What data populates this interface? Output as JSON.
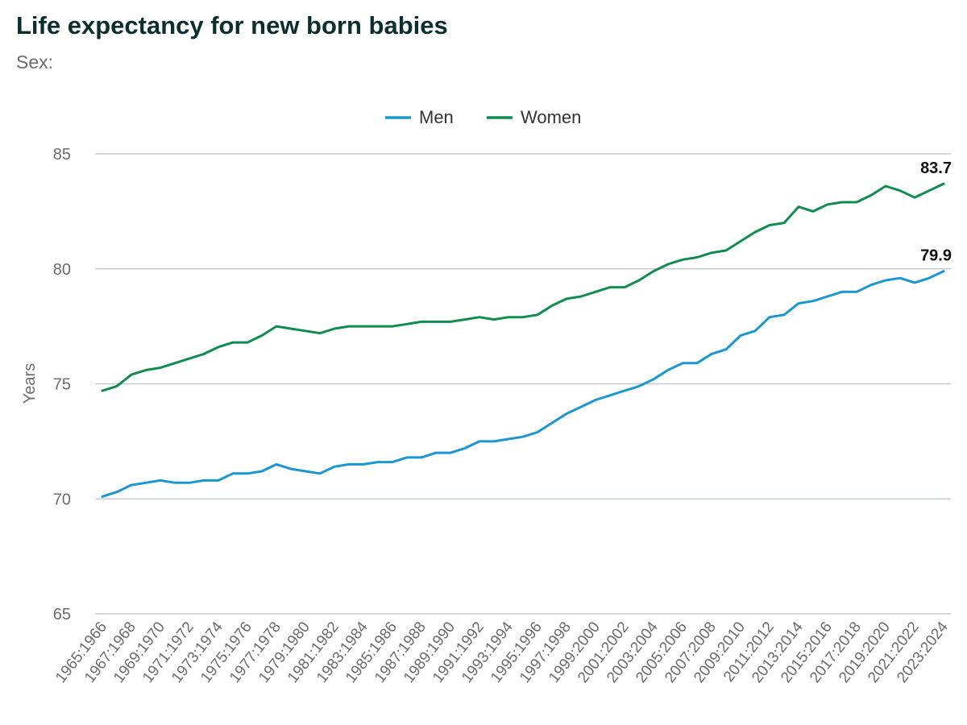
{
  "header": {
    "title": "Life expectancy for new born babies",
    "subtitle": "Sex:"
  },
  "chart_data": {
    "type": "line",
    "title": "Life expectancy for new born babies",
    "xlabel": "",
    "ylabel": "Years",
    "ylim": [
      65,
      85
    ],
    "yticks": [
      65,
      70,
      75,
      80,
      85
    ],
    "grid": true,
    "legend_position": "top-center",
    "categories": [
      "1965:1966",
      "1966:1967",
      "1967:1968",
      "1968:1969",
      "1969:1970",
      "1970:1971",
      "1971:1972",
      "1972:1973",
      "1973:1974",
      "1974:1975",
      "1975:1976",
      "1976:1977",
      "1977:1978",
      "1978:1979",
      "1979:1980",
      "1980:1981",
      "1981:1982",
      "1982:1983",
      "1983:1984",
      "1984:1985",
      "1985:1986",
      "1986:1987",
      "1987:1988",
      "1988:1989",
      "1989:1990",
      "1990:1991",
      "1991:1992",
      "1992:1993",
      "1993:1994",
      "1994:1995",
      "1995:1996",
      "1996:1997",
      "1997:1998",
      "1998:1999",
      "1999:2000",
      "2000:2001",
      "2001:2002",
      "2002:2003",
      "2003:2004",
      "2004:2005",
      "2005:2006",
      "2006:2007",
      "2007:2008",
      "2008:2009",
      "2009:2010",
      "2010:2011",
      "2011:2012",
      "2012:2013",
      "2013:2014",
      "2014:2015",
      "2015:2016",
      "2016:2017",
      "2017:2018",
      "2018:2019",
      "2019:2020",
      "2020:2021",
      "2021:2022",
      "2022:2023",
      "2023:2024"
    ],
    "xtick_labels": [
      "1965:1966",
      "1967:1968",
      "1969:1970",
      "1971:1972",
      "1973:1974",
      "1975:1976",
      "1977:1978",
      "1979:1980",
      "1981:1982",
      "1983:1984",
      "1985:1986",
      "1987:1988",
      "1989:1990",
      "1991:1992",
      "1993:1994",
      "1995:1996",
      "1997:1998",
      "1999:2000",
      "2001:2002",
      "2003:2004",
      "2005:2006",
      "2007:2008",
      "2009:2010",
      "2011:2012",
      "2013:2014",
      "2015:2016",
      "2017:2018",
      "2019:2020",
      "2021:2022",
      "2023:2024"
    ],
    "series": [
      {
        "name": "Men",
        "color": "#1a96d2",
        "values": [
          70.1,
          70.3,
          70.6,
          70.7,
          70.8,
          70.7,
          70.7,
          70.8,
          70.8,
          71.1,
          71.1,
          71.2,
          71.5,
          71.3,
          71.2,
          71.1,
          71.4,
          71.5,
          71.5,
          71.6,
          71.6,
          71.8,
          71.8,
          72.0,
          72.0,
          72.2,
          72.5,
          72.5,
          72.6,
          72.7,
          72.9,
          73.3,
          73.7,
          74.0,
          74.3,
          74.5,
          74.7,
          74.9,
          75.2,
          75.6,
          75.9,
          75.9,
          76.3,
          76.5,
          77.1,
          77.3,
          77.9,
          78.0,
          78.5,
          78.6,
          78.8,
          79.0,
          79.0,
          79.3,
          79.5,
          79.6,
          79.4,
          79.6,
          79.9
        ],
        "end_label": "79.9"
      },
      {
        "name": "Women",
        "color": "#0f8c4e",
        "values": [
          74.7,
          74.9,
          75.4,
          75.6,
          75.7,
          75.9,
          76.1,
          76.3,
          76.6,
          76.8,
          76.8,
          77.1,
          77.5,
          77.4,
          77.3,
          77.2,
          77.4,
          77.5,
          77.5,
          77.5,
          77.5,
          77.6,
          77.7,
          77.7,
          77.7,
          77.8,
          77.9,
          77.8,
          77.9,
          77.9,
          78.0,
          78.4,
          78.7,
          78.8,
          79.0,
          79.2,
          79.2,
          79.5,
          79.9,
          80.2,
          80.4,
          80.5,
          80.7,
          80.8,
          81.2,
          81.6,
          81.9,
          82.0,
          82.7,
          82.5,
          82.8,
          82.9,
          82.9,
          83.2,
          83.6,
          83.4,
          83.1,
          83.4,
          83.7
        ],
        "end_label": "83.7"
      }
    ]
  }
}
